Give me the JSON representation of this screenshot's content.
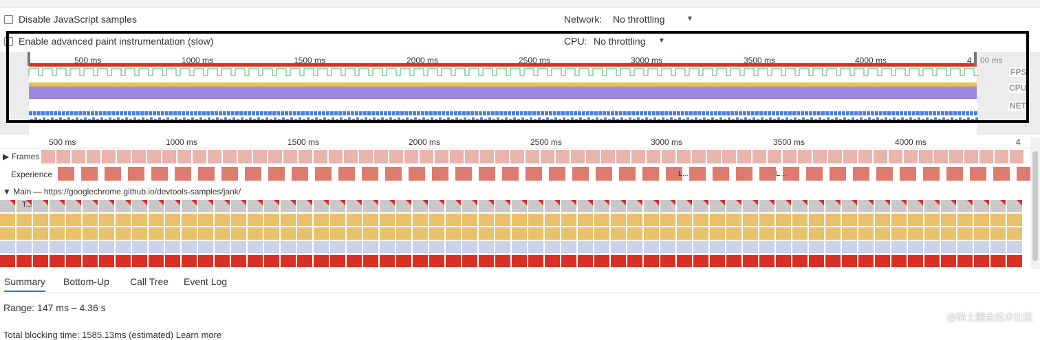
{
  "options": {
    "disable_js_samples": "Disable JavaScript samples",
    "network_label": "Network:",
    "network_value": "No throttling",
    "advanced_paint": "Enable advanced paint instrumentation (slow)",
    "cpu_label": "CPU:",
    "cpu_value": "No throttling"
  },
  "overview": {
    "ticks": [
      "500 ms",
      "1000 ms",
      "1500 ms",
      "2000 ms",
      "2500 ms",
      "3000 ms",
      "3500 ms",
      "4000 ms",
      "4"
    ],
    "last_tick_suffix": "00 ms",
    "fps": "FPS",
    "cpu": "CPU",
    "net": "NET",
    "colors": {
      "fps_line": "#3cba54",
      "cpu_purple": "#9b87e0",
      "cpu_yellow": "#e8c04d",
      "net_blue": "#4a7fe0",
      "red_bar": "#d93025"
    }
  },
  "timeline": {
    "ticks": [
      "500 ms",
      "1000 ms",
      "1500 ms",
      "2000 ms",
      "2500 ms",
      "3000 ms",
      "3500 ms",
      "4000 ms",
      "4"
    ],
    "frames_label": "Frames",
    "experience_label": "Experience",
    "experience_chip": "L...",
    "main_label": "Main — https://googlechrome.github.io/devtools-samples/jank/",
    "task_chip": "T..."
  },
  "tabs": [
    "Summary",
    "Bottom-Up",
    "Call Tree",
    "Event Log"
  ],
  "summary": {
    "range": "Range: 147 ms – 4.36 s",
    "footer": "Total blocking time: 1585.13ms (estimated) Learn more"
  },
  "watermark": "@稀土掘金技术社区"
}
